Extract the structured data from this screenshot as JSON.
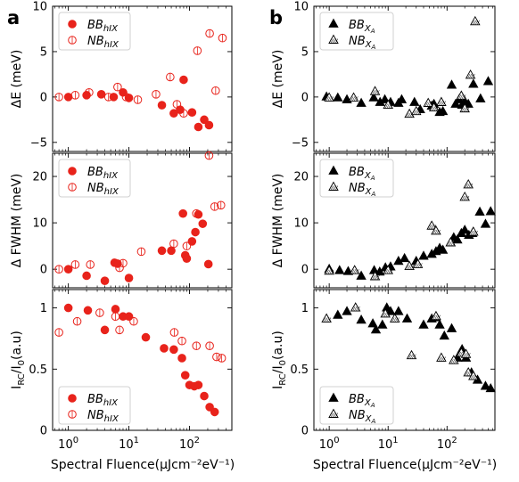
{
  "figure": {
    "panel_labels": [
      "a",
      "b"
    ],
    "xlabel": "Spectral Fluence(μJcm⁻²eV⁻¹)",
    "panel_a_color": "#e8231b",
    "panel_b_color": "#000000",
    "legend_a": {
      "bb": "BB",
      "bb_sub": "hIX",
      "nb": "NB",
      "nb_sub": "hIX"
    },
    "legend_b": {
      "bb": "BB",
      "bb_sub": "X",
      "bb_subsub": "A",
      "nb": "NB",
      "nb_sub": "X",
      "nb_subsub": "A"
    }
  },
  "chart_data": [
    {
      "type": "scatter",
      "panel": "a",
      "row": 0,
      "ylabel": "ΔE (meV)",
      "ylim": [
        -6,
        10
      ],
      "yticks": [
        -5,
        0,
        5,
        10
      ],
      "xscale": "log",
      "xlim": [
        0.55,
        500
      ],
      "xticks": [
        1,
        10,
        100
      ],
      "xticklabels": [
        "10⁰",
        "10¹",
        "10²"
      ],
      "show_xticklabels": false,
      "legend": "top-left",
      "series": [
        {
          "name": "BB_hIX",
          "marker": "filled-circle",
          "x": [
            1.0,
            2.0,
            3.5,
            5.6,
            8.0,
            10,
            35,
            55,
            70,
            80,
            110,
            140,
            175,
            210
          ],
          "y": [
            0.0,
            0.2,
            0.3,
            0.0,
            0.5,
            -0.1,
            -0.9,
            -1.8,
            -1.4,
            1.9,
            -1.7,
            -3.3,
            -2.5,
            -3.1
          ]
        },
        {
          "name": "NB_hIX",
          "marker": "open-circle",
          "x": [
            0.7,
            1.3,
            2.2,
            4.6,
            6.5,
            9,
            14,
            28,
            48,
            62,
            80,
            135,
            215,
            270,
            350
          ],
          "y": [
            0.0,
            0.2,
            0.5,
            0.0,
            1.1,
            0.0,
            -0.3,
            0.3,
            2.2,
            -0.8,
            -1.8,
            5.1,
            7.0,
            0.7,
            6.5
          ]
        }
      ]
    },
    {
      "type": "scatter",
      "panel": "a",
      "row": 1,
      "ylabel": "Δ FWHM (meV)",
      "ylim": [
        -4,
        25
      ],
      "yticks": [
        0,
        10,
        20
      ],
      "xscale": "log",
      "xlim": [
        0.55,
        500
      ],
      "xticks": [
        1,
        10,
        100
      ],
      "xticklabels": [
        "10⁰",
        "10¹",
        "10²"
      ],
      "show_xticklabels": false,
      "legend": "top-left",
      "series": [
        {
          "name": "BB_hIX",
          "marker": "filled-circle",
          "x": [
            1.0,
            2.0,
            4.0,
            5.8,
            6.5,
            10,
            35,
            50,
            78,
            85,
            90,
            110,
            125,
            140,
            165,
            205
          ],
          "y": [
            0.0,
            -1.4,
            -2.5,
            1.4,
            1.2,
            -1.9,
            4.0,
            4.0,
            12.0,
            3.0,
            2.3,
            6.0,
            8.0,
            11.8,
            9.8,
            1.1
          ]
        },
        {
          "name": "NB_hIX",
          "marker": "open-circle",
          "x": [
            0.7,
            1.3,
            2.3,
            7.0,
            8.0,
            16,
            55,
            90,
            130,
            210,
            260,
            330
          ],
          "y": [
            0.0,
            1.0,
            1.0,
            0.3,
            1.3,
            3.8,
            5.5,
            5.0,
            12.0,
            24.5,
            13.5,
            13.8
          ]
        }
      ]
    },
    {
      "type": "scatter",
      "panel": "a",
      "row": 2,
      "ylabel": "Iₕ₀/I₀(a.u)",
      "ylim": [
        0.0,
        1.15
      ],
      "yticks": [
        0.0,
        0.5,
        1.0
      ],
      "xscale": "log",
      "xlim": [
        0.55,
        500
      ],
      "xticks": [
        1,
        10,
        100
      ],
      "xticklabels": [
        "10⁰",
        "10¹",
        "10²"
      ],
      "show_xticklabels": true,
      "legend": "bottom-left",
      "series": [
        {
          "name": "BB_hIX",
          "marker": "filled-circle",
          "x": [
            1.0,
            2.1,
            4.0,
            6.0,
            8.0,
            10,
            19,
            38,
            55,
            75,
            85,
            100,
            120,
            140,
            175,
            215,
            260
          ],
          "y": [
            1.0,
            0.98,
            0.82,
            0.99,
            0.93,
            0.93,
            0.76,
            0.67,
            0.66,
            0.59,
            0.45,
            0.37,
            0.36,
            0.37,
            0.28,
            0.19,
            0.15
          ]
        },
        {
          "name": "NB_hIX",
          "marker": "open-circle",
          "x": [
            0.7,
            1.4,
            3.3,
            6.0,
            7.0,
            12,
            56,
            75,
            130,
            215,
            280,
            340
          ],
          "y": [
            0.8,
            0.89,
            0.96,
            0.93,
            0.82,
            0.89,
            0.8,
            0.73,
            0.69,
            0.69,
            0.6,
            0.59
          ]
        }
      ]
    },
    {
      "type": "scatter",
      "panel": "b",
      "row": 0,
      "ylabel": "ΔE (meV)",
      "ylim": [
        -6,
        10
      ],
      "yticks": [
        -5,
        0,
        5,
        10
      ],
      "xscale": "log",
      "xlim": [
        0.55,
        650
      ],
      "xticks": [
        1,
        10,
        100
      ],
      "xticklabels": [
        "10⁰",
        "10¹",
        "10²"
      ],
      "show_xticklabels": false,
      "legend": "top-left",
      "series": [
        {
          "name": "BB_XA",
          "marker": "filled-triangle",
          "x": [
            0.9,
            1.4,
            2.0,
            3.5,
            5.7,
            7.3,
            8.8,
            11,
            15,
            17,
            28,
            35,
            55,
            60,
            75,
            85,
            120,
            140,
            160,
            180,
            200,
            230,
            280,
            370,
            500
          ],
          "y": [
            0.0,
            -0.1,
            -0.3,
            -0.7,
            -0.1,
            -0.6,
            -0.3,
            -0.6,
            -0.7,
            -0.3,
            -0.6,
            -1.4,
            -1.0,
            -0.8,
            -1.7,
            -1.6,
            1.3,
            -0.8,
            -0.3,
            -0.9,
            -0.5,
            -0.8,
            1.4,
            -0.2,
            1.7
          ]
        },
        {
          "name": "NB_XA",
          "marker": "open-triangle",
          "x": [
            1.0,
            2.6,
            6.0,
            10,
            23,
            30,
            48,
            60,
            80,
            175,
            200,
            250,
            300
          ],
          "y": [
            -0.1,
            -0.1,
            0.6,
            -0.9,
            -1.9,
            -1.6,
            -0.7,
            -1.2,
            -0.6,
            0.1,
            -1.3,
            2.4,
            8.3
          ]
        }
      ]
    },
    {
      "type": "scatter",
      "panel": "b",
      "row": 1,
      "ylabel": "Δ FWHM (meV)",
      "ylim": [
        -4,
        25
      ],
      "yticks": [
        0,
        10,
        20
      ],
      "xscale": "log",
      "xlim": [
        0.55,
        650
      ],
      "xticks": [
        1,
        10,
        100
      ],
      "xticklabels": [
        "10⁰",
        "10¹",
        "10²"
      ],
      "show_xticklabels": false,
      "legend": "top-left",
      "series": [
        {
          "name": "BB_XA",
          "marker": "filled-triangle",
          "x": [
            1.0,
            1.5,
            2.1,
            3.5,
            5.8,
            7.2,
            9,
            11,
            15,
            19,
            30,
            40,
            55,
            65,
            75,
            85,
            115,
            130,
            150,
            175,
            200,
            235,
            270,
            360,
            450,
            550
          ],
          "y": [
            0.0,
            -0.3,
            -0.5,
            -1.5,
            -0.3,
            -0.6,
            0.3,
            0.5,
            1.7,
            2.3,
            1.7,
            2.8,
            3.2,
            3.8,
            4.5,
            4.1,
            5.7,
            6.8,
            6.3,
            7.7,
            8.4,
            7.3,
            7.7,
            12.3,
            9.7,
            12.4
          ]
        },
        {
          "name": "NB_XA",
          "marker": "open-triangle",
          "x": [
            1.0,
            2.7,
            6.0,
            10,
            23,
            32,
            55,
            65,
            115,
            200,
            230,
            280
          ],
          "y": [
            -0.4,
            -0.3,
            -1.6,
            -0.3,
            0.6,
            1.0,
            9.3,
            8.2,
            5.7,
            15.5,
            18.2,
            8.0
          ]
        }
      ]
    },
    {
      "type": "scatter",
      "panel": "b",
      "row": 2,
      "ylabel": "Iₕ₀/I₀(a.u)",
      "ylim": [
        0.0,
        1.15
      ],
      "yticks": [
        0.0,
        0.5,
        1.0
      ],
      "xscale": "log",
      "xlim": [
        0.55,
        650
      ],
      "xticks": [
        1,
        10,
        100
      ],
      "xticklabels": [
        "10⁰",
        "10¹",
        "10²"
      ],
      "show_xticklabels": true,
      "legend": "bottom-left",
      "series": [
        {
          "name": "BB_XA",
          "marker": "filled-triangle",
          "x": [
            1.4,
            2.0,
            3.5,
            5.5,
            6.2,
            8.0,
            9.5,
            11,
            15,
            21,
            40,
            55,
            65,
            75,
            90,
            120,
            150,
            180,
            210,
            260,
            330,
            450,
            550
          ],
          "y": [
            0.94,
            0.97,
            0.9,
            0.87,
            0.82,
            0.86,
            1.0,
            0.97,
            0.97,
            0.91,
            0.86,
            0.91,
            0.92,
            0.86,
            0.77,
            0.83,
            0.59,
            0.66,
            0.59,
            0.47,
            0.41,
            0.36,
            0.34
          ]
        },
        {
          "name": "NB_XA",
          "marker": "open-triangle",
          "x": [
            0.9,
            2.8,
            9,
            13,
            25,
            65,
            80,
            130,
            175,
            210,
            230,
            280
          ],
          "y": [
            0.91,
            1.0,
            0.95,
            0.91,
            0.61,
            0.93,
            0.59,
            0.57,
            0.63,
            0.62,
            0.47,
            0.44
          ]
        }
      ]
    }
  ]
}
